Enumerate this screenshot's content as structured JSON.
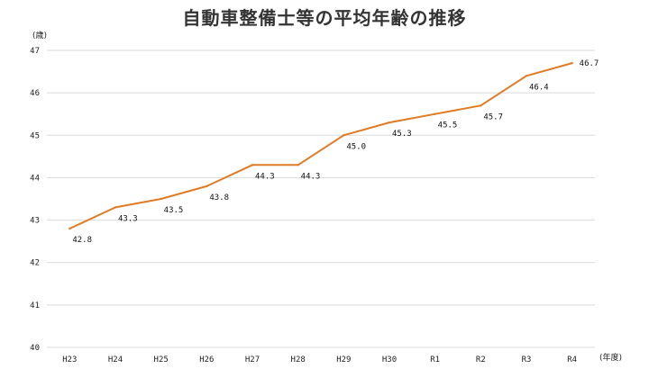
{
  "chart_data": {
    "type": "line",
    "title": "自動車整備士等の平均年齢の推移",
    "ylabel": "(歳)",
    "xlabel": "(年度)",
    "categories": [
      "H23",
      "H24",
      "H25",
      "H26",
      "H27",
      "H28",
      "H29",
      "H30",
      "R1",
      "R2",
      "R3",
      "R4"
    ],
    "series": [
      {
        "values": [
          42.8,
          43.3,
          43.5,
          43.8,
          44.3,
          44.3,
          45.0,
          45.3,
          45.5,
          45.7,
          46.4,
          46.7
        ],
        "labels": [
          "42.8",
          "43.3",
          "43.5",
          "43.8",
          "44.3",
          "44.3",
          "45.0",
          "45.3",
          "45.5",
          "45.7",
          "46.4",
          "46.7"
        ]
      }
    ],
    "ylim": [
      40,
      47
    ],
    "yticks": [
      40,
      41,
      42,
      43,
      44,
      45,
      46,
      47
    ],
    "grid": true,
    "line_color": "#e07b24",
    "grid_color": "#d9d9d9"
  }
}
